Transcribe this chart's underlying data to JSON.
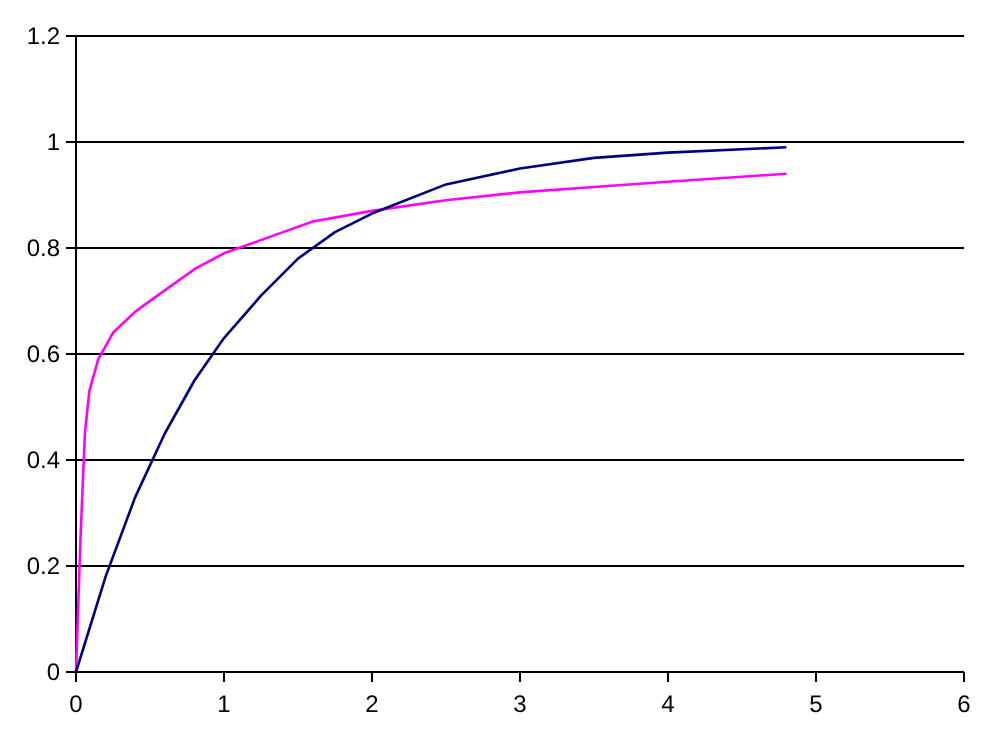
{
  "chart_data": {
    "type": "line",
    "xlim": [
      0,
      6
    ],
    "ylim": [
      0,
      1.2
    ],
    "xticks": [
      0,
      1,
      2,
      3,
      4,
      5,
      6
    ],
    "yticks": [
      0,
      0.2,
      0.4,
      0.6,
      0.8,
      1,
      1.2
    ],
    "grid": "y",
    "marker": "none",
    "line_style": "solid",
    "series": [
      {
        "color": "#ff00ff",
        "x": [
          0,
          0.03,
          0.06,
          0.09,
          0.15,
          0.25,
          0.4,
          0.6,
          0.8,
          1,
          1.3,
          1.6,
          2,
          2.5,
          3,
          3.5,
          4,
          4.8
        ],
        "values": [
          0,
          0.25,
          0.45,
          0.53,
          0.59,
          0.64,
          0.68,
          0.72,
          0.76,
          0.79,
          0.82,
          0.85,
          0.87,
          0.89,
          0.905,
          0.915,
          0.925,
          0.94
        ]
      },
      {
        "color": "#000080",
        "x": [
          0,
          0.2,
          0.4,
          0.6,
          0.8,
          1,
          1.25,
          1.5,
          1.75,
          2,
          2.5,
          3,
          3.5,
          4,
          4.8
        ],
        "values": [
          0,
          0.18,
          0.33,
          0.45,
          0.55,
          0.63,
          0.71,
          0.78,
          0.83,
          0.865,
          0.92,
          0.95,
          0.97,
          0.98,
          0.99
        ]
      }
    ]
  }
}
